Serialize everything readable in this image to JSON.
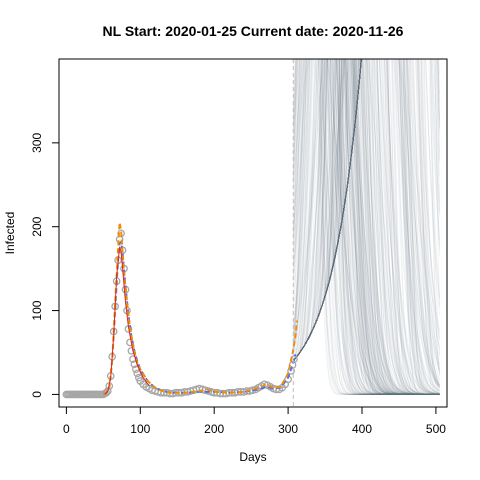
{
  "chart_data": {
    "type": "line",
    "title": "NL Start:  2020-01-25   Current date:  2020-11-26",
    "xlabel": "Days",
    "ylabel": "Infected",
    "xlim": [
      -10,
      515
    ],
    "ylim": [
      -15,
      400
    ],
    "xticks": [
      0,
      100,
      200,
      300,
      400,
      500
    ],
    "yticks": [
      0,
      100,
      200,
      300
    ],
    "current_day": 307,
    "grid": false,
    "legend": "none",
    "colors": {
      "observed_points": "#a6a6a6",
      "smoothed_line": "#4a6cf7",
      "model_fit": "#f28c00",
      "red_fit": "#d9261c",
      "simulations": "#5e7880",
      "current_day_line": "#bfbfbf"
    },
    "series": [
      {
        "kind": "observed",
        "x": [
          0,
          2,
          4,
          6,
          8,
          10,
          12,
          14,
          16,
          18,
          20,
          22,
          24,
          26,
          28,
          30,
          32,
          34,
          36,
          38,
          40,
          42,
          44,
          46,
          48,
          50,
          52,
          54,
          56,
          58,
          60,
          62,
          64,
          66,
          68,
          70,
          72,
          74,
          76,
          78,
          80,
          82,
          84,
          86,
          88,
          90,
          92,
          94,
          96,
          98,
          100,
          104,
          108,
          112,
          116,
          120,
          124,
          128,
          132,
          136,
          140,
          144,
          148,
          152,
          156,
          160,
          164,
          168,
          172,
          176,
          180,
          184,
          188,
          192,
          196,
          200,
          204,
          208,
          212,
          216,
          220,
          224,
          228,
          232,
          236,
          240,
          244,
          248,
          252,
          256,
          260,
          264,
          268,
          272,
          276,
          280,
          284,
          288,
          292,
          296,
          300,
          304,
          306,
          308
        ],
        "y": [
          0,
          0,
          0,
          0,
          0,
          0,
          0,
          0,
          0,
          0,
          0,
          0,
          0,
          0,
          0,
          0,
          0,
          0,
          0,
          0,
          0,
          0,
          0,
          0,
          0,
          0,
          1,
          2,
          4,
          10,
          22,
          45,
          75,
          105,
          135,
          160,
          185,
          192,
          172,
          150,
          125,
          100,
          78,
          62,
          52,
          42,
          36,
          30,
          25,
          20,
          16,
          12,
          9,
          7,
          5,
          4,
          3,
          2,
          2,
          2,
          1,
          1,
          2,
          2,
          2,
          3,
          3,
          4,
          5,
          6,
          7,
          6,
          5,
          4,
          3,
          2,
          2,
          1,
          1,
          1,
          2,
          2,
          2,
          3,
          3,
          3,
          4,
          4,
          5,
          6,
          8,
          10,
          12,
          11,
          9,
          7,
          6,
          6,
          8,
          12,
          18,
          28,
          35,
          42
        ]
      },
      {
        "kind": "smoothed",
        "x": [
          50,
          54,
          58,
          62,
          66,
          70,
          72,
          74,
          76,
          78,
          80,
          84,
          88,
          92,
          96,
          100,
          110,
          120,
          130,
          140,
          160,
          180,
          200,
          220,
          240,
          260,
          270,
          280,
          290,
          300,
          306,
          310
        ],
        "y": [
          0,
          2,
          8,
          40,
          100,
          160,
          180,
          182,
          170,
          150,
          130,
          95,
          70,
          52,
          40,
          30,
          16,
          8,
          4,
          2,
          2,
          3,
          3,
          2,
          3,
          6,
          9,
          7,
          8,
          20,
          35,
          48
        ]
      },
      {
        "kind": "model_fit",
        "x": [
          50,
          54,
          58,
          62,
          66,
          70,
          72,
          74,
          76,
          78,
          82,
          86,
          90,
          95,
          100,
          110,
          120,
          130,
          140,
          160,
          180,
          190,
          200,
          220,
          240,
          260,
          270,
          280,
          290,
          300,
          306,
          310,
          312
        ],
        "y": [
          0,
          2,
          8,
          40,
          110,
          175,
          205,
          195,
          170,
          145,
          110,
          80,
          60,
          40,
          30,
          16,
          8,
          4,
          2,
          2,
          4,
          6,
          3,
          2,
          3,
          8,
          12,
          8,
          9,
          25,
          48,
          70,
          88
        ]
      },
      {
        "kind": "red_fit",
        "x": [
          52,
          56,
          60,
          64,
          68,
          72,
          74,
          76,
          80,
          84,
          90,
          96,
          104,
          112
        ],
        "y": [
          0,
          4,
          20,
          70,
          140,
          176,
          170,
          150,
          110,
          80,
          52,
          35,
          20,
          10
        ]
      }
    ],
    "simulations": {
      "count": 400,
      "start_x": 307,
      "end_x": 507,
      "start_y": 40
    }
  }
}
